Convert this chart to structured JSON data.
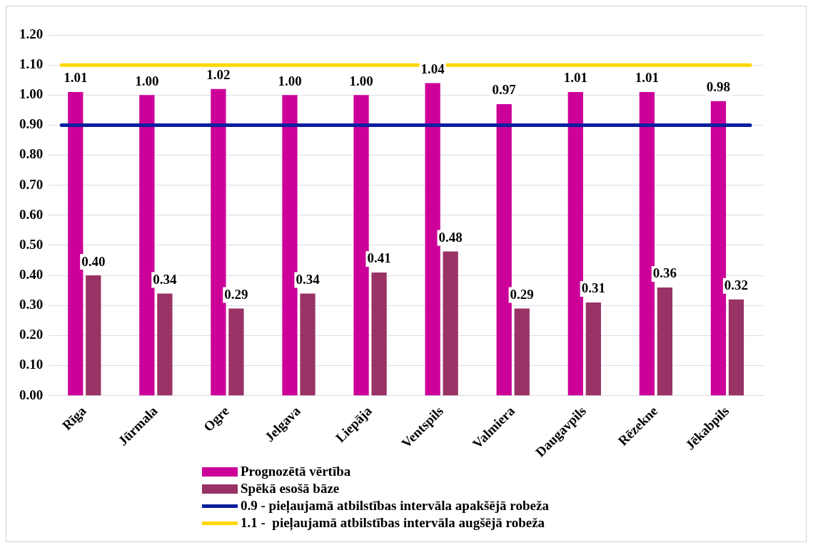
{
  "chart_data": {
    "type": "bar",
    "categories": [
      "Rīga",
      "Jūrmala",
      "Ogre",
      "Jelgava",
      "Liepāja",
      "Ventspils",
      "Valmiera",
      "Daugavpils",
      "Rēzekne",
      "Jēkabpils"
    ],
    "series": [
      {
        "name": "Prognozētā vērtība",
        "color": "#cc0099",
        "values": [
          1.01,
          1.0,
          1.02,
          1.0,
          1.0,
          1.04,
          0.97,
          1.01,
          1.01,
          0.98
        ],
        "value_labels": [
          "1.01",
          "1.00",
          "1.02",
          "1.00",
          "1.00",
          "1.04",
          "0.97",
          "1.01",
          "1.01",
          "0.98"
        ]
      },
      {
        "name": "Spēkā esošā bāze",
        "color": "#993366",
        "values": [
          0.4,
          0.34,
          0.29,
          0.34,
          0.41,
          0.48,
          0.29,
          0.31,
          0.36,
          0.32
        ],
        "value_labels": [
          "0.40",
          "0.34",
          "0.29",
          "0.34",
          "0.41",
          "0.48",
          "0.29",
          "0.31",
          "0.36",
          "0.32"
        ]
      }
    ],
    "ref_lines": [
      {
        "axis": "y",
        "value": 0.9,
        "label": "0.9 - pieļaujamā atbilstības intervāla apakšējā robeža",
        "color": "#0a1f9e"
      },
      {
        "axis": "y",
        "value": 1.1,
        "label": "1.1 -  pieļaujamā atbilstības intervāla augšējā robeža",
        "color": "#ffd700"
      }
    ],
    "ylim": [
      0,
      1.2
    ],
    "yticks": [
      {
        "value": 0,
        "label": "0.00"
      },
      {
        "value": 0.1,
        "label": "0.10"
      },
      {
        "value": 0.2,
        "label": "0.20"
      },
      {
        "value": 0.3,
        "label": "0.30"
      },
      {
        "value": 0.4,
        "label": "0.40"
      },
      {
        "value": 0.5,
        "label": "0.50"
      },
      {
        "value": 0.6,
        "label": "0.60"
      },
      {
        "value": 0.7,
        "label": "0.70"
      },
      {
        "value": 0.8,
        "label": "0.80"
      },
      {
        "value": 0.9,
        "label": "0.90"
      },
      {
        "value": 1.0,
        "label": "1.00"
      },
      {
        "value": 1.1,
        "label": "1.10"
      },
      {
        "value": 1.2,
        "label": "1.20"
      }
    ],
    "grid": "y",
    "legend": "bottom"
  }
}
